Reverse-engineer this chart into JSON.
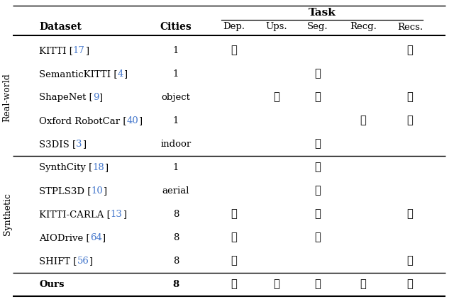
{
  "title": "Task",
  "rows": [
    {
      "dataset": "KITTI",
      "ref": "17",
      "cities": "1",
      "dep": true,
      "ups": false,
      "seg": false,
      "recg": false,
      "recs": true,
      "bold": false
    },
    {
      "dataset": "SemanticKITTI",
      "ref": "4",
      "cities": "1",
      "dep": false,
      "ups": false,
      "seg": true,
      "recg": false,
      "recs": false,
      "bold": false
    },
    {
      "dataset": "ShapeNet",
      "ref": "9",
      "cities": "object",
      "dep": false,
      "ups": true,
      "seg": true,
      "recg": false,
      "recs": true,
      "bold": false
    },
    {
      "dataset": "Oxford RobotCar",
      "ref": "40",
      "cities": "1",
      "dep": false,
      "ups": false,
      "seg": false,
      "recg": true,
      "recs": true,
      "bold": false
    },
    {
      "dataset": "S3DIS",
      "ref": "3",
      "cities": "indoor",
      "dep": false,
      "ups": false,
      "seg": true,
      "recg": false,
      "recs": false,
      "bold": false
    },
    {
      "dataset": "SynthCity",
      "ref": "18",
      "cities": "1",
      "dep": false,
      "ups": false,
      "seg": true,
      "recg": false,
      "recs": false,
      "bold": false
    },
    {
      "dataset": "STPLS3D",
      "ref": "10",
      "cities": "aerial",
      "dep": false,
      "ups": false,
      "seg": true,
      "recg": false,
      "recs": false,
      "bold": false
    },
    {
      "dataset": "KITTI-CARLA",
      "ref": "13",
      "cities": "8",
      "dep": true,
      "ups": false,
      "seg": true,
      "recg": false,
      "recs": true,
      "bold": false
    },
    {
      "dataset": "AIODrive",
      "ref": "64",
      "cities": "8",
      "dep": true,
      "ups": false,
      "seg": true,
      "recg": false,
      "recs": false,
      "bold": false
    },
    {
      "dataset": "SHIFT",
      "ref": "56",
      "cities": "8",
      "dep": true,
      "ups": false,
      "seg": false,
      "recg": false,
      "recs": true,
      "bold": false
    },
    {
      "dataset": "Ours",
      "ref": "",
      "cities": "8",
      "dep": true,
      "ups": true,
      "seg": true,
      "recg": true,
      "recs": true,
      "bold": true
    }
  ],
  "check_color": "#000000",
  "ref_color": "#4477CC",
  "background_color": "#ffffff",
  "separator_after_row": [
    4,
    9
  ],
  "real_world_rows": [
    0,
    4
  ],
  "synthetic_rows": [
    5,
    9
  ]
}
